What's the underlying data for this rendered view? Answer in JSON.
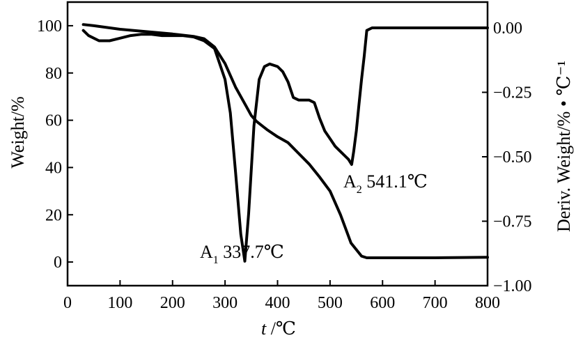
{
  "chart_data": {
    "type": "line",
    "xlabel_italic": "t",
    "xlabel_unit": " /℃",
    "ylabel": "Weight/%",
    "y2label": "Deriv. Weight/% • ℃⁻¹",
    "xlim": [
      0,
      800
    ],
    "ylim": [
      -10,
      110
    ],
    "y2lim": [
      -1.0,
      0.1
    ],
    "x_ticks": [
      "0",
      "100",
      "200",
      "300",
      "400",
      "500",
      "600",
      "700",
      "800"
    ],
    "y_ticks": [
      "0",
      "20",
      "40",
      "60",
      "80",
      "100"
    ],
    "y2_ticks": [
      "0.00",
      "−0.25",
      "−0.50",
      "−0.75",
      "−1.00"
    ],
    "grid": false,
    "series": [
      {
        "axis": "left",
        "x": [
          30,
          50,
          100,
          150,
          200,
          240,
          260,
          280,
          300,
          320,
          340,
          350,
          360,
          380,
          400,
          420,
          440,
          460,
          480,
          500,
          520,
          540,
          560,
          570,
          580,
          600,
          650,
          700,
          750,
          800
        ],
        "y": [
          100.5,
          100,
          98.5,
          97.5,
          96.5,
          95.5,
          94.5,
          91,
          84,
          74,
          66,
          62,
          59.5,
          56,
          53,
          50.5,
          46,
          41.5,
          36,
          30,
          20,
          8,
          2.5,
          1.8,
          1.8,
          1.8,
          1.8,
          1.8,
          1.9,
          2
        ]
      },
      {
        "axis": "right",
        "x": [
          30,
          40,
          60,
          80,
          100,
          120,
          140,
          160,
          180,
          200,
          220,
          240,
          260,
          280,
          300,
          310,
          320,
          330,
          337.7,
          345,
          355,
          365,
          375,
          385,
          400,
          410,
          420,
          430,
          440,
          450,
          460,
          470,
          480,
          490,
          500,
          510,
          520,
          530,
          535,
          541.1,
          545,
          550,
          555,
          560,
          565,
          570,
          580,
          600,
          650,
          700,
          750,
          800
        ],
        "y": [
          -0.01,
          -0.03,
          -0.05,
          -0.05,
          -0.04,
          -0.03,
          -0.025,
          -0.025,
          -0.03,
          -0.03,
          -0.03,
          -0.035,
          -0.05,
          -0.08,
          -0.2,
          -0.33,
          -0.56,
          -0.8,
          -0.905,
          -0.72,
          -0.38,
          -0.2,
          -0.15,
          -0.14,
          -0.15,
          -0.17,
          -0.21,
          -0.27,
          -0.28,
          -0.28,
          -0.28,
          -0.29,
          -0.35,
          -0.4,
          -0.43,
          -0.46,
          -0.48,
          -0.5,
          -0.51,
          -0.53,
          -0.48,
          -0.4,
          -0.3,
          -0.2,
          -0.11,
          -0.01,
          0,
          0,
          0,
          0,
          0,
          0
        ]
      }
    ],
    "annotations": [
      {
        "main": "A",
        "sub": "1",
        "text": " 337.7℃",
        "x": 337.7
      },
      {
        "main": "A",
        "sub": "2",
        "text": " 541.1℃",
        "x": 541.1
      }
    ]
  }
}
